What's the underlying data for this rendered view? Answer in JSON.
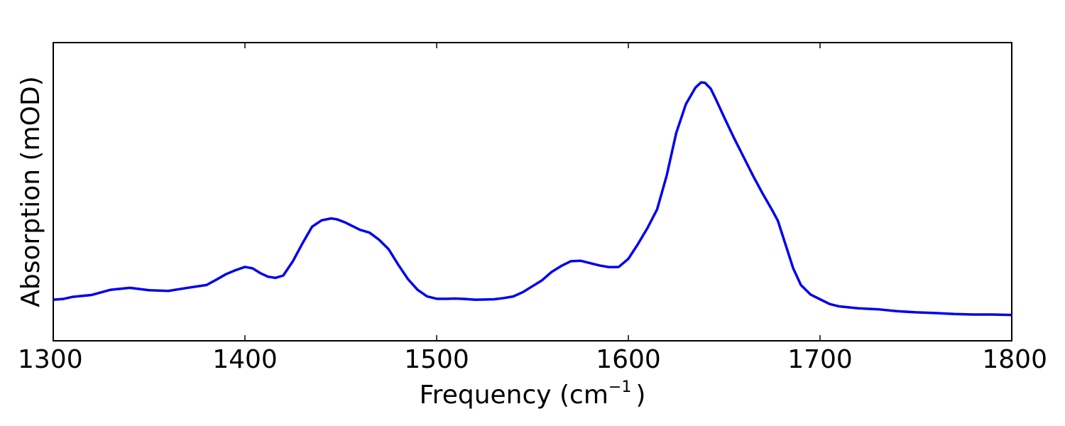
{
  "chart_data": {
    "type": "line",
    "xlabel": "Frequency (cm",
    "xlabel_sup": "−1",
    "xlabel_close": ")",
    "ylabel": "Absorption (mOD)",
    "xlim": [
      1300,
      1800
    ],
    "ylim": [
      0,
      1
    ],
    "x_ticks": [
      1300,
      1400,
      1500,
      1600,
      1700,
      1800
    ],
    "x_tick_labels": [
      "1300",
      "1400",
      "1500",
      "1600",
      "1700",
      "1800"
    ],
    "y_ticks": [],
    "grid": false,
    "line_color": "#0000ee",
    "series": [
      {
        "x": [
          1300,
          1305,
          1310,
          1320,
          1330,
          1340,
          1350,
          1360,
          1370,
          1380,
          1385,
          1390,
          1395,
          1400,
          1404,
          1408,
          1412,
          1416,
          1420,
          1425,
          1430,
          1435,
          1440,
          1445,
          1448,
          1452,
          1456,
          1460,
          1465,
          1470,
          1475,
          1480,
          1485,
          1490,
          1495,
          1500,
          1505,
          1510,
          1515,
          1520,
          1525,
          1530,
          1535,
          1540,
          1545,
          1550,
          1555,
          1560,
          1565,
          1570,
          1575,
          1580,
          1585,
          1590,
          1595,
          1600,
          1605,
          1610,
          1615,
          1620,
          1625,
          1630,
          1635,
          1638,
          1640,
          1643,
          1646,
          1650,
          1655,
          1660,
          1665,
          1670,
          1675,
          1678,
          1682,
          1686,
          1690,
          1695,
          1700,
          1705,
          1710,
          1720,
          1730,
          1740,
          1750,
          1760,
          1770,
          1780,
          1790,
          1800
        ],
        "y": [
          0.098,
          0.101,
          0.11,
          0.118,
          0.14,
          0.148,
          0.138,
          0.135,
          0.148,
          0.16,
          0.182,
          0.205,
          0.222,
          0.236,
          0.23,
          0.21,
          0.195,
          0.19,
          0.2,
          0.26,
          0.335,
          0.405,
          0.432,
          0.44,
          0.436,
          0.424,
          0.408,
          0.392,
          0.38,
          0.35,
          0.31,
          0.245,
          0.185,
          0.14,
          0.112,
          0.102,
          0.102,
          0.103,
          0.101,
          0.098,
          0.099,
          0.1,
          0.105,
          0.112,
          0.13,
          0.155,
          0.18,
          0.215,
          0.24,
          0.26,
          0.262,
          0.252,
          0.242,
          0.235,
          0.236,
          0.27,
          0.332,
          0.4,
          0.478,
          0.62,
          0.8,
          0.92,
          0.99,
          1.012,
          1.01,
          0.985,
          0.935,
          0.865,
          0.78,
          0.7,
          0.62,
          0.545,
          0.475,
          0.43,
          0.33,
          0.23,
          0.16,
          0.12,
          0.1,
          0.08,
          0.07,
          0.062,
          0.058,
          0.05,
          0.045,
          0.042,
          0.038,
          0.036,
          0.036,
          0.034
        ]
      }
    ]
  }
}
